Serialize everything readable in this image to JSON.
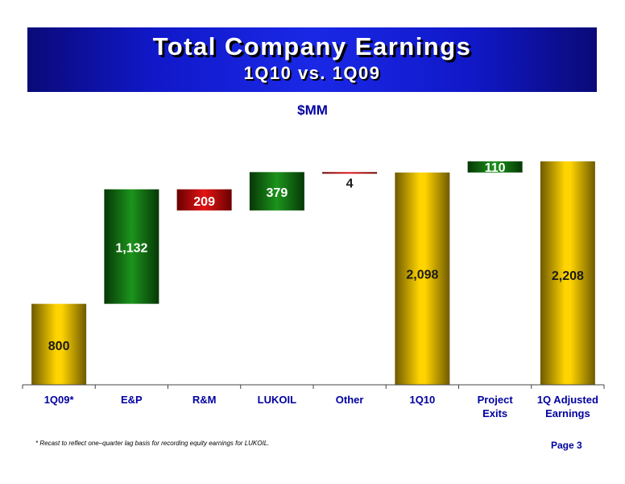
{
  "header": {
    "title": "Total Company Earnings",
    "subtitle": "1Q10 vs. 1Q09"
  },
  "unit_label": "$MM",
  "chart_data": {
    "type": "bar",
    "subtype": "waterfall",
    "categories": [
      "1Q09*",
      "E&P",
      "R&M",
      "LUKOIL",
      "Other",
      "1Q10",
      "Project Exits",
      "1Q Adjusted Earnings"
    ],
    "steps": [
      {
        "category": "1Q09*",
        "kind": "total",
        "value": 800,
        "label": "800",
        "color": "gold"
      },
      {
        "category": "E&P",
        "kind": "increase",
        "value": 1132,
        "label": "1,132",
        "color": "green"
      },
      {
        "category": "R&M",
        "kind": "decrease",
        "value": -209,
        "label": "209",
        "color": "red"
      },
      {
        "category": "LUKOIL",
        "kind": "increase",
        "value": 379,
        "label": "379",
        "color": "green"
      },
      {
        "category": "Other",
        "kind": "decrease",
        "value": -4,
        "label": "4",
        "color": "red"
      },
      {
        "category": "1Q10",
        "kind": "total",
        "value": 2098,
        "label": "2,098",
        "color": "gold"
      },
      {
        "category": "Project Exits",
        "kind": "increase",
        "value": 110,
        "label": "110",
        "color": "green"
      },
      {
        "category": "1Q Adjusted Earnings",
        "kind": "total",
        "value": 2208,
        "label": "2,208",
        "color": "gold"
      }
    ],
    "title": "Total Company Earnings",
    "subtitle": "1Q10 vs. 1Q09",
    "ylabel": "$MM",
    "xlabel": "",
    "ylim": [
      0,
      2320
    ],
    "grid": false,
    "legend": "none",
    "colors": {
      "gold": "#d4b000",
      "green": "#137a13",
      "red": "#c41010"
    }
  },
  "footnote": "* Recast to reflect one–quarter lag basis for recording equity earnings for LUKOIL.",
  "page_label": "Page 3"
}
